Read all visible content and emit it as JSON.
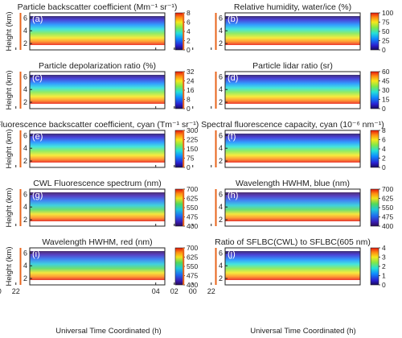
{
  "figure": {
    "xlabel": "Universal Time Coordinated (h)",
    "ylabel": "Height (km)"
  },
  "chart_data": [
    {
      "type": "heatmap",
      "panel": "(a)",
      "title": "Particle backscatter coefficient (Mm⁻¹ sr⁻¹)",
      "xlabel": "",
      "ylabel": "Height (km)",
      "xticks": [
        "22",
        "00",
        "02",
        "04"
      ],
      "yticks": [
        "2",
        "4",
        "6"
      ],
      "ylim": [
        1,
        6.8
      ],
      "colorbar_ticks": [
        "0",
        "2",
        "4",
        "6",
        "8"
      ],
      "colormap": "jet",
      "vlines_utc": [
        "21:30",
        "01:00"
      ],
      "vline_color": "#e8641b"
    },
    {
      "type": "heatmap",
      "panel": "(b)",
      "title": "Relative humidity, water/ice (%)",
      "xlabel": "",
      "ylabel": "",
      "xticks": [
        "22",
        "00",
        "02",
        "04"
      ],
      "yticks": [
        "2",
        "4",
        "6"
      ],
      "ylim": [
        1,
        6.8
      ],
      "colorbar_ticks": [
        "0",
        "25",
        "50",
        "75",
        "100"
      ],
      "colormap": "jet",
      "vlines_utc": [
        "21:30",
        "01:00"
      ],
      "vline_color": "#e8641b"
    },
    {
      "type": "heatmap",
      "panel": "(c)",
      "title": "Particle depolarization ratio (%)",
      "xlabel": "",
      "ylabel": "Height (km)",
      "xticks": [
        "22",
        "00",
        "02",
        "04"
      ],
      "yticks": [
        "2",
        "4",
        "6"
      ],
      "ylim": [
        1,
        6.8
      ],
      "colorbar_ticks": [
        "0",
        "8",
        "16",
        "24",
        "32"
      ],
      "colormap": "jet",
      "vlines_utc": [
        "21:30",
        "01:00"
      ],
      "vline_color": "#e8641b"
    },
    {
      "type": "heatmap",
      "panel": "(d)",
      "title": "Particle lidar ratio (sr)",
      "xlabel": "",
      "ylabel": "",
      "xticks": [
        "22",
        "00",
        "02",
        "04"
      ],
      "yticks": [
        "2",
        "4",
        "6"
      ],
      "ylim": [
        1,
        6.8
      ],
      "colorbar_ticks": [
        "0",
        "15",
        "30",
        "45",
        "60"
      ],
      "colormap": "jet",
      "vlines_utc": [
        "21:30",
        "01:00"
      ],
      "vline_color": "#e8641b"
    },
    {
      "type": "heatmap",
      "panel": "(e)",
      "title": "Fluorescence backscatter coefficient, cyan (Tm⁻¹ sr⁻¹)",
      "xlabel": "",
      "ylabel": "Height (km)",
      "xticks": [
        "22",
        "00",
        "02",
        "04"
      ],
      "yticks": [
        "2",
        "4",
        "6"
      ],
      "ylim": [
        1,
        6.8
      ],
      "colorbar_ticks": [
        "0",
        "75",
        "150",
        "225",
        "300"
      ],
      "colormap": "jet",
      "vlines_utc": [
        "21:30",
        "01:00"
      ],
      "vline_color": "#e8641b"
    },
    {
      "type": "heatmap",
      "panel": "(f)",
      "title": "Spectral fluorescence capacity, cyan (10⁻⁶ nm⁻¹)",
      "xlabel": "",
      "ylabel": "",
      "xticks": [
        "22",
        "00",
        "02",
        "04"
      ],
      "yticks": [
        "2",
        "4",
        "6"
      ],
      "ylim": [
        1,
        6.8
      ],
      "colorbar_ticks": [
        "0",
        "2",
        "4",
        "6",
        "8"
      ],
      "colormap": "jet",
      "vlines_utc": [
        "21:30",
        "01:00"
      ],
      "vline_color": "#e8641b"
    },
    {
      "type": "heatmap",
      "panel": "(g)",
      "title": "CWL Fluorescence spectrum (nm)",
      "xlabel": "",
      "ylabel": "Height (km)",
      "xticks": [
        "22",
        "00",
        "02",
        "04"
      ],
      "yticks": [
        "2",
        "4",
        "6"
      ],
      "ylim": [
        1,
        6.8
      ],
      "colorbar_ticks": [
        "400",
        "475",
        "550",
        "625",
        "700"
      ],
      "colormap": "spectral",
      "vlines_utc": [
        "21:30",
        "01:00"
      ],
      "vline_color": "#e8641b"
    },
    {
      "type": "heatmap",
      "panel": "(h)",
      "title": "Wavelength HWHM, blue (nm)",
      "xlabel": "",
      "ylabel": "",
      "xticks": [
        "22",
        "00",
        "02",
        "04"
      ],
      "yticks": [
        "2",
        "4",
        "6"
      ],
      "ylim": [
        1,
        6.8
      ],
      "colorbar_ticks": [
        "400",
        "475",
        "550",
        "625",
        "700"
      ],
      "colormap": "spectral",
      "vlines_utc": [
        "21:30",
        "01:00"
      ],
      "vline_color": "#e8641b"
    },
    {
      "type": "heatmap",
      "panel": "(i)",
      "title": "Wavelength HWHM, red (nm)",
      "xlabel": "Universal Time Coordinated (h)",
      "ylabel": "Height (km)",
      "xticks": [
        "22",
        "00",
        "02",
        "04"
      ],
      "yticks": [
        "2",
        "4",
        "6"
      ],
      "ylim": [
        1,
        6.8
      ],
      "colorbar_ticks": [
        "400",
        "475",
        "550",
        "625",
        "700"
      ],
      "colormap": "spectral",
      "vlines_utc": [
        "21:30",
        "01:00"
      ],
      "vline_color": "#e8641b"
    },
    {
      "type": "heatmap",
      "panel": "(j)",
      "title": "Ratio of SFLBC(CWL) to SFLBC(605 nm)",
      "xlabel": "Universal Time Coordinated (h)",
      "ylabel": "",
      "xticks": [
        "22",
        "00",
        "02",
        "04"
      ],
      "yticks": [
        "2",
        "4",
        "6"
      ],
      "ylim": [
        1,
        6.8
      ],
      "colorbar_ticks": [
        "0",
        "1",
        "2",
        "3",
        "4"
      ],
      "colormap": "jet",
      "vlines_utc": [
        "21:30",
        "01:00"
      ],
      "vline_color": "#e8641b"
    }
  ]
}
